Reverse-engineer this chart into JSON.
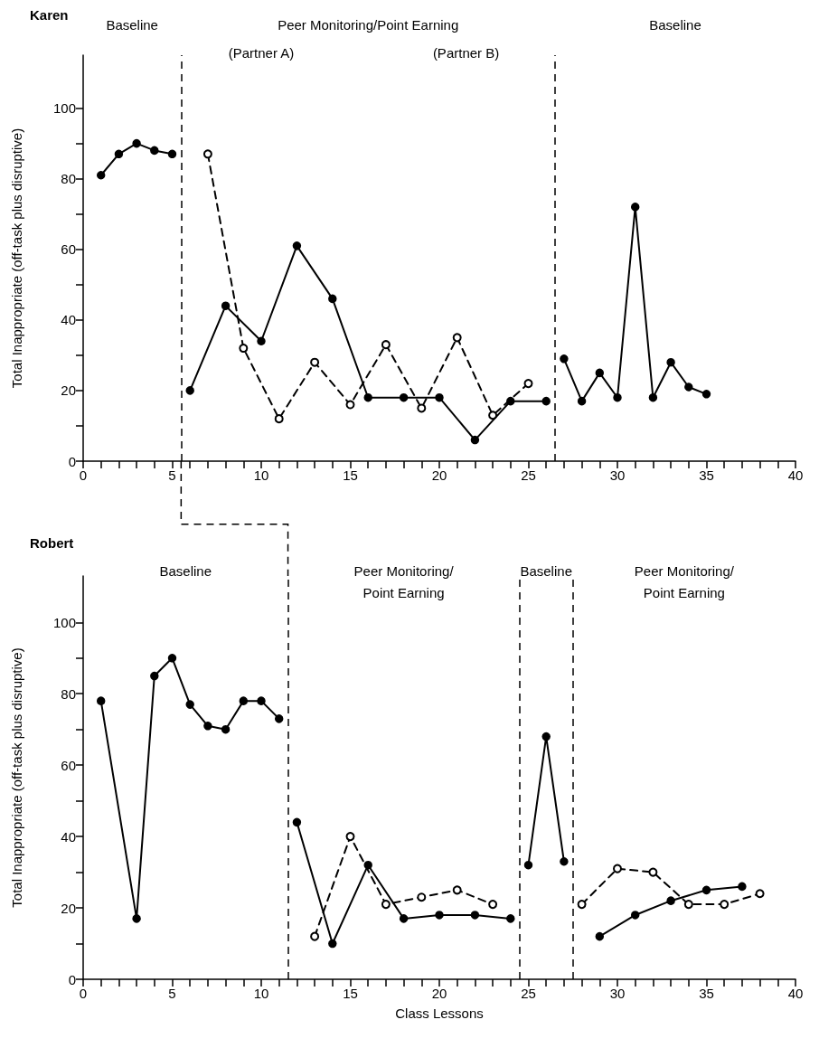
{
  "chart_data": [
    {
      "type": "line",
      "title": "Karen",
      "ylabel": "Total Inappropriate (off-task plus disruptive)",
      "xlim": [
        0,
        40
      ],
      "ylim": [
        0,
        115
      ],
      "xticks": [
        0,
        {
          "value": 1,
          "label": null
        },
        {
          "value": 2,
          "label": null
        },
        {
          "value": 3,
          "label": null
        },
        {
          "value": 4,
          "label": null
        },
        5,
        {
          "value": 6,
          "label": null
        },
        {
          "value": 7,
          "label": null
        },
        {
          "value": 8,
          "label": null
        },
        {
          "value": 9,
          "label": null
        },
        10,
        {
          "value": 11,
          "label": null
        },
        {
          "value": 12,
          "label": null
        },
        {
          "value": 13,
          "label": null
        },
        {
          "value": 14,
          "label": null
        },
        15,
        {
          "value": 16,
          "label": null
        },
        {
          "value": 17,
          "label": null
        },
        {
          "value": 18,
          "label": null
        },
        {
          "value": 19,
          "label": null
        },
        20,
        {
          "value": 21,
          "label": null
        },
        {
          "value": 22,
          "label": null
        },
        {
          "value": 23,
          "label": null
        },
        {
          "value": 24,
          "label": null
        },
        25,
        {
          "value": 26,
          "label": null
        },
        {
          "value": 27,
          "label": null
        },
        {
          "value": 28,
          "label": null
        },
        {
          "value": 29,
          "label": null
        },
        30,
        {
          "value": 31,
          "label": null
        },
        {
          "value": 32,
          "label": null
        },
        {
          "value": 33,
          "label": null
        },
        {
          "value": 34,
          "label": null
        },
        35,
        {
          "value": 36,
          "label": null
        },
        {
          "value": 37,
          "label": null
        },
        {
          "value": 38,
          "label": null
        },
        {
          "value": 39,
          "label": null
        },
        40
      ],
      "yticks": [
        0,
        {
          "value": 10,
          "label": null
        },
        20,
        {
          "value": 30,
          "label": null
        },
        40,
        {
          "value": 50,
          "label": null
        },
        60,
        {
          "value": 70,
          "label": null
        },
        80,
        {
          "value": 90,
          "label": null
        },
        100
      ],
      "marker": "circle",
      "series": [
        {
          "color": "#000000",
          "line_style": "solid",
          "x": [
            1,
            2,
            3,
            4,
            5
          ],
          "values": [
            81,
            87,
            90,
            88,
            87
          ]
        },
        {
          "color": "#000000",
          "line_style": "solid",
          "x": [
            6,
            8,
            10,
            12,
            14,
            16,
            18,
            20,
            22,
            24,
            26
          ],
          "values": [
            20,
            44,
            34,
            61,
            46,
            18,
            18,
            18,
            6,
            17,
            17
          ]
        },
        {
          "color": "#000000",
          "line_style": "dashed",
          "x": [
            7,
            9,
            11,
            13,
            15,
            17,
            19,
            21,
            23,
            25
          ],
          "values": [
            87,
            32,
            12,
            28,
            16,
            33,
            15,
            35,
            13,
            22
          ]
        },
        {
          "color": "#000000",
          "line_style": "solid",
          "x": [
            27,
            28,
            29,
            30,
            31,
            32,
            33,
            34,
            35
          ],
          "values": [
            29,
            17,
            25,
            18,
            72,
            18,
            28,
            21,
            19
          ]
        }
      ],
      "ref_lines": [
        {
          "axis": "x",
          "value": 5.5,
          "color": "#000000",
          "line_style": "dashed"
        },
        {
          "axis": "x",
          "value": 26.5,
          "color": "#000000",
          "line_style": "dashed"
        }
      ],
      "annotations": [
        "Baseline",
        "Peer Monitoring/Point Earning",
        "Baseline",
        "(Partner A)",
        "(Partner B)"
      ]
    },
    {
      "type": "line",
      "title": "Robert",
      "xlabel": "Class Lessons",
      "ylabel": "Total Inappropriate (off-task plus disruptive)",
      "xlim": [
        0,
        40
      ],
      "ylim": [
        0,
        113
      ],
      "xticks": [
        0,
        {
          "value": 1,
          "label": null
        },
        {
          "value": 2,
          "label": null
        },
        {
          "value": 3,
          "label": null
        },
        {
          "value": 4,
          "label": null
        },
        5,
        {
          "value": 6,
          "label": null
        },
        {
          "value": 7,
          "label": null
        },
        {
          "value": 8,
          "label": null
        },
        {
          "value": 9,
          "label": null
        },
        10,
        {
          "value": 11,
          "label": null
        },
        {
          "value": 12,
          "label": null
        },
        {
          "value": 13,
          "label": null
        },
        {
          "value": 14,
          "label": null
        },
        15,
        {
          "value": 16,
          "label": null
        },
        {
          "value": 17,
          "label": null
        },
        {
          "value": 18,
          "label": null
        },
        {
          "value": 19,
          "label": null
        },
        20,
        {
          "value": 21,
          "label": null
        },
        {
          "value": 22,
          "label": null
        },
        {
          "value": 23,
          "label": null
        },
        {
          "value": 24,
          "label": null
        },
        25,
        {
          "value": 26,
          "label": null
        },
        {
          "value": 27,
          "label": null
        },
        {
          "value": 28,
          "label": null
        },
        {
          "value": 29,
          "label": null
        },
        30,
        {
          "value": 31,
          "label": null
        },
        {
          "value": 32,
          "label": null
        },
        {
          "value": 33,
          "label": null
        },
        {
          "value": 34,
          "label": null
        },
        35,
        {
          "value": 36,
          "label": null
        },
        {
          "value": 37,
          "label": null
        },
        {
          "value": 38,
          "label": null
        },
        {
          "value": 39,
          "label": null
        },
        40
      ],
      "yticks": [
        0,
        {
          "value": 10,
          "label": null
        },
        20,
        {
          "value": 30,
          "label": null
        },
        40,
        {
          "value": 50,
          "label": null
        },
        60,
        {
          "value": 70,
          "label": null
        },
        80,
        {
          "value": 90,
          "label": null
        },
        100
      ],
      "marker": "circle",
      "series": [
        {
          "color": "#000000",
          "line_style": "solid",
          "x": [
            1,
            3,
            4,
            5,
            6,
            7,
            8,
            9,
            10,
            11
          ],
          "values": [
            78,
            17,
            85,
            90,
            77,
            71,
            70,
            78,
            78,
            73
          ]
        },
        {
          "color": "#000000",
          "line_style": "solid",
          "x": [
            12,
            14,
            16,
            18,
            20,
            22,
            24
          ],
          "values": [
            44,
            10,
            32,
            17,
            18,
            18,
            17
          ]
        },
        {
          "color": "#000000",
          "line_style": "dashed",
          "x": [
            13,
            15,
            17,
            19,
            21,
            23
          ],
          "values": [
            12,
            40,
            21,
            23,
            25,
            21
          ]
        },
        {
          "color": "#000000",
          "line_style": "solid",
          "x": [
            25,
            26,
            27
          ],
          "values": [
            32,
            68,
            33
          ]
        },
        {
          "color": "#000000",
          "line_style": "dashed",
          "x": [
            28,
            30,
            32,
            34,
            36,
            38
          ],
          "values": [
            21,
            31,
            30,
            21,
            21,
            24
          ]
        },
        {
          "color": "#000000",
          "line_style": "solid",
          "x": [
            29,
            31,
            33,
            35,
            37
          ],
          "values": [
            12,
            18,
            22,
            25,
            26
          ]
        }
      ],
      "ref_lines": [
        {
          "axis": "x",
          "value": 11.5,
          "color": "#000000",
          "line_style": "dashed"
        },
        {
          "axis": "x",
          "value": 24.5,
          "color": "#000000",
          "line_style": "dashed"
        },
        {
          "axis": "x",
          "value": 27.5,
          "color": "#000000",
          "line_style": "dashed"
        }
      ],
      "annotations": [
        "Baseline",
        "Peer Monitoring/\nPoint Earning",
        "Baseline",
        "Peer Monitoring/\nPoint Earning"
      ]
    }
  ]
}
